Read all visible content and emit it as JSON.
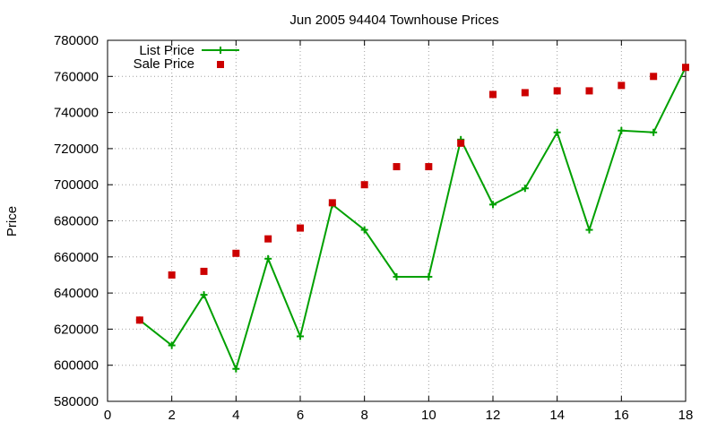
{
  "chart_data": {
    "type": "line",
    "title": "Jun 2005 94404 Townhouse Prices",
    "xlabel": "",
    "ylabel": "Price",
    "xlim": [
      0,
      18
    ],
    "ylim": [
      580000,
      780000
    ],
    "x_ticks": [
      0,
      2,
      4,
      6,
      8,
      10,
      12,
      14,
      16,
      18
    ],
    "y_ticks": [
      580000,
      600000,
      620000,
      640000,
      660000,
      680000,
      700000,
      720000,
      740000,
      760000,
      780000
    ],
    "grid": true,
    "legend_position": "top-left",
    "series": [
      {
        "name": "List Price",
        "style": "line-with-plus-markers",
        "color": "#00a000",
        "x": [
          1,
          2,
          3,
          4,
          5,
          6,
          7,
          8,
          9,
          10,
          11,
          12,
          13,
          14,
          15,
          16,
          17,
          18
        ],
        "values": [
          625000,
          611000,
          639000,
          598000,
          659000,
          616000,
          689000,
          675000,
          649000,
          649000,
          725000,
          689000,
          698000,
          729000,
          675000,
          730000,
          729000,
          765000
        ]
      },
      {
        "name": "Sale Price",
        "style": "square-markers",
        "color": "#cc0000",
        "x": [
          1,
          2,
          3,
          4,
          5,
          6,
          7,
          8,
          9,
          10,
          11,
          12,
          13,
          14,
          15,
          16,
          17,
          18
        ],
        "values": [
          625000,
          650000,
          652000,
          662000,
          670000,
          676000,
          690000,
          700000,
          710000,
          710000,
          723000,
          750000,
          751000,
          752000,
          752000,
          755000,
          760000,
          765000
        ]
      }
    ]
  }
}
